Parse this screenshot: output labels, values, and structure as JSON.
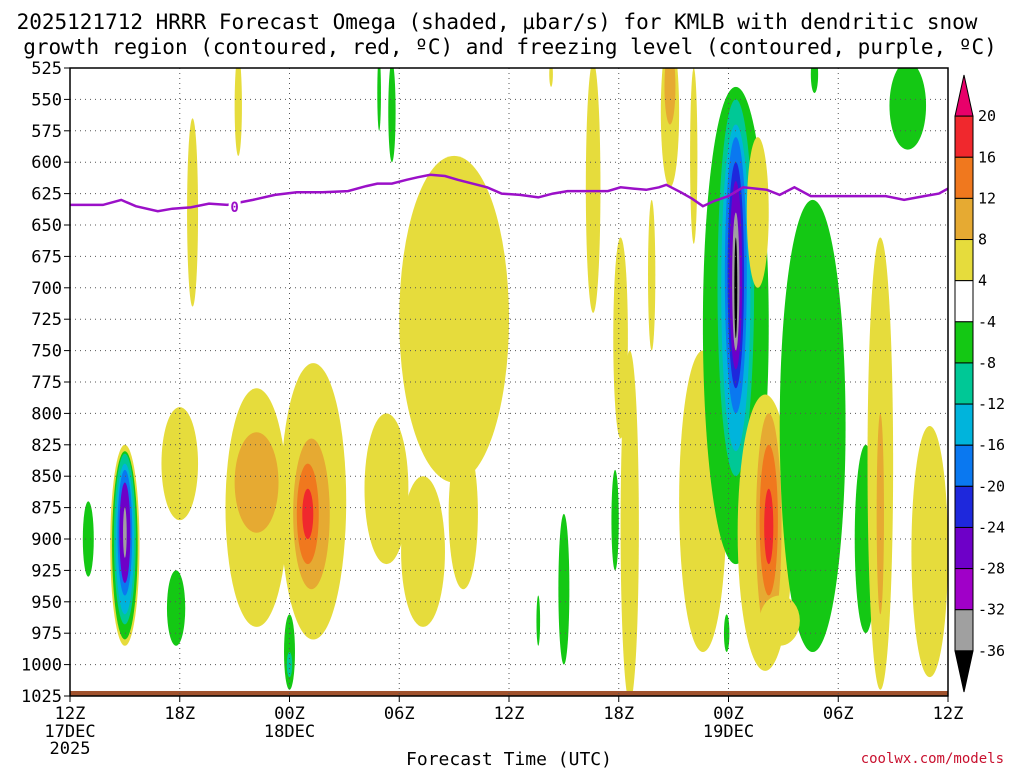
{
  "chart_data": {
    "type": "time-height contour",
    "title_line1": "2025121712 HRRR Forecast Omega (shaded, µbar/s) for KMLB with dendritic snow",
    "title_line2": "growth region (contoured, red, ºC) and freezing level (contoured, purple, ºC)",
    "xlabel": "Forecast Time (UTC)",
    "credit": "coolwx.com/models",
    "y_axis": {
      "unit": "hPa",
      "range": [
        1025,
        525
      ],
      "ticks": [
        "525",
        "550",
        "575",
        "600",
        "625",
        "650",
        "675",
        "700",
        "725",
        "750",
        "775",
        "800",
        "825",
        "850",
        "875",
        "900",
        "925",
        "950",
        "975",
        "1000",
        "1025"
      ]
    },
    "x_axis": {
      "range_hours": [
        0,
        48
      ],
      "ticks": [
        {
          "h": 0,
          "label": "12Z",
          "sub1": "17DEC",
          "sub2": "2025"
        },
        {
          "h": 6,
          "label": "18Z",
          "sub1": "",
          "sub2": ""
        },
        {
          "h": 12,
          "label": "00Z",
          "sub1": "18DEC",
          "sub2": ""
        },
        {
          "h": 18,
          "label": "06Z",
          "sub1": "",
          "sub2": ""
        },
        {
          "h": 24,
          "label": "12Z",
          "sub1": "",
          "sub2": ""
        },
        {
          "h": 30,
          "label": "18Z",
          "sub1": "",
          "sub2": ""
        },
        {
          "h": 36,
          "label": "00Z",
          "sub1": "19DEC",
          "sub2": ""
        },
        {
          "h": 42,
          "label": "06Z",
          "sub1": "",
          "sub2": ""
        },
        {
          "h": 48,
          "label": "12Z",
          "sub1": "",
          "sub2": ""
        }
      ]
    },
    "colorbar": {
      "labels": [
        "20",
        "16",
        "12",
        "8",
        "4",
        "-4",
        "-8",
        "-12",
        "-16",
        "-20",
        "-24",
        "-28",
        "-32",
        "-36"
      ],
      "colors": [
        "#e8006a",
        "#f0282d",
        "#f0781e",
        "#e6aa32",
        "#e6dc3c",
        "#ffffff",
        "#14c814",
        "#00c896",
        "#00b4dc",
        "#0a78f0",
        "#1e28dc",
        "#6e00c8",
        "#a000c8",
        "#a0a0a0",
        "#000000"
      ]
    },
    "freezing_level": {
      "label": "0",
      "color": "#9b10c8",
      "points": [
        [
          0,
          634
        ],
        [
          1.8,
          634
        ],
        [
          2.8,
          630
        ],
        [
          3.6,
          635
        ],
        [
          4.8,
          639
        ],
        [
          5.6,
          637
        ],
        [
          6.6,
          636
        ],
        [
          7.6,
          633
        ],
        [
          8.6,
          634
        ],
        [
          10,
          630
        ],
        [
          11.2,
          626
        ],
        [
          12.4,
          624
        ],
        [
          13.8,
          624
        ],
        [
          15.2,
          623
        ],
        [
          16.2,
          619
        ],
        [
          16.8,
          617
        ],
        [
          17.6,
          617
        ],
        [
          18.4,
          614
        ],
        [
          19,
          612
        ],
        [
          19.7,
          610
        ],
        [
          20.5,
          611
        ],
        [
          21.2,
          614
        ],
        [
          22,
          617
        ],
        [
          22.8,
          620
        ],
        [
          23.6,
          625
        ],
        [
          24.6,
          626
        ],
        [
          25.6,
          628
        ],
        [
          26.4,
          625
        ],
        [
          27.2,
          623
        ],
        [
          28.5,
          623
        ],
        [
          29.4,
          623
        ],
        [
          30.1,
          620
        ],
        [
          30.8,
          621
        ],
        [
          31.5,
          622
        ],
        [
          32.2,
          620
        ],
        [
          32.6,
          618
        ],
        [
          33.4,
          624
        ],
        [
          34,
          629
        ],
        [
          34.6,
          635
        ],
        [
          35.2,
          631
        ],
        [
          36,
          627
        ],
        [
          36.8,
          620
        ],
        [
          38.1,
          622
        ],
        [
          38.8,
          626
        ],
        [
          39.6,
          620
        ],
        [
          40.5,
          627
        ],
        [
          41.4,
          627
        ],
        [
          42.5,
          627
        ],
        [
          43.5,
          627
        ],
        [
          44.6,
          627
        ],
        [
          45.6,
          630
        ],
        [
          46.7,
          627
        ],
        [
          47.5,
          625
        ],
        [
          48,
          621
        ]
      ]
    },
    "omega_shaded": [
      {
        "value": 4,
        "color": "#e6dc3c",
        "cx": 3.0,
        "cp": 905,
        "rx": 0.8,
        "rp": 80
      },
      {
        "value": -8,
        "color": "#14c814",
        "cx": 3.0,
        "cp": 905,
        "rx": 0.7,
        "rp": 75
      },
      {
        "value": -12,
        "color": "#00c896",
        "cx": 3.0,
        "cp": 900,
        "rx": 0.6,
        "rp": 68
      },
      {
        "value": -16,
        "color": "#00b4dc",
        "cx": 3.0,
        "cp": 900,
        "rx": 0.5,
        "rp": 60
      },
      {
        "value": -20,
        "color": "#0a78f0",
        "cx": 3.0,
        "cp": 895,
        "rx": 0.4,
        "rp": 50
      },
      {
        "value": -28,
        "color": "#6e00c8",
        "cx": 3.0,
        "cp": 895,
        "rx": 0.3,
        "rp": 40
      },
      {
        "value": -32,
        "color": "#a0a0a0",
        "cx": 3.0,
        "cp": 895,
        "rx": 0.1,
        "rp": 20
      },
      {
        "value": -8,
        "color": "#14c814",
        "cx": 1.0,
        "cp": 900,
        "rx": 0.3,
        "rp": 30
      },
      {
        "value": -8,
        "color": "#14c814",
        "cx": 5.8,
        "cp": 955,
        "rx": 0.5,
        "rp": 30
      },
      {
        "value": 4,
        "color": "#e6dc3c",
        "cx": 6.7,
        "cp": 640,
        "rx": 0.3,
        "rp": 75
      },
      {
        "value": 4,
        "color": "#e6dc3c",
        "cx": 9.2,
        "cp": 555,
        "rx": 0.2,
        "rp": 40
      },
      {
        "value": 4,
        "color": "#e6dc3c",
        "cx": 6.0,
        "cp": 840,
        "rx": 1.0,
        "rp": 45
      },
      {
        "value": 4,
        "color": "#e6dc3c",
        "cx": 10.2,
        "cp": 875,
        "rx": 1.7,
        "rp": 95
      },
      {
        "value": 8,
        "color": "#e6aa32",
        "cx": 10.2,
        "cp": 855,
        "rx": 1.2,
        "rp": 40
      },
      {
        "value": 4,
        "color": "#e6dc3c",
        "cx": 13.3,
        "cp": 870,
        "rx": 1.8,
        "rp": 110
      },
      {
        "value": 8,
        "color": "#e6aa32",
        "cx": 13.2,
        "cp": 880,
        "rx": 1.0,
        "rp": 60
      },
      {
        "value": 12,
        "color": "#f0781e",
        "cx": 13.0,
        "cp": 880,
        "rx": 0.6,
        "rp": 40
      },
      {
        "value": 16,
        "color": "#f0282d",
        "cx": 13.0,
        "cp": 880,
        "rx": 0.3,
        "rp": 20
      },
      {
        "value": -8,
        "color": "#14c814",
        "cx": 12.0,
        "cp": 990,
        "rx": 0.3,
        "rp": 30
      },
      {
        "value": -12,
        "color": "#00c896",
        "cx": 12.0,
        "cp": 1000,
        "rx": 0.15,
        "rp": 10
      },
      {
        "value": 4,
        "color": "#e6dc3c",
        "cx": 17.3,
        "cp": 860,
        "rx": 1.2,
        "rp": 60
      },
      {
        "value": 4,
        "color": "#e6dc3c",
        "cx": 19.3,
        "cp": 910,
        "rx": 1.2,
        "rp": 60
      },
      {
        "value": 4,
        "color": "#e6dc3c",
        "cx": 21.2,
        "cp": 760,
        "rx": 0.3,
        "rp": 40
      },
      {
        "value": 4,
        "color": "#e6dc3c",
        "cx": 21.5,
        "cp": 880,
        "rx": 0.8,
        "rp": 60
      },
      {
        "value": 4,
        "color": "#e6dc3c",
        "cx": 21.0,
        "cp": 725,
        "rx": 3.0,
        "rp": 130
      },
      {
        "value": -8,
        "color": "#14c814",
        "cx": 17.6,
        "cp": 560,
        "rx": 0.2,
        "rp": 40
      },
      {
        "value": -8,
        "color": "#14c814",
        "cx": 25.6,
        "cp": 965,
        "rx": 0.1,
        "rp": 20
      },
      {
        "value": -8,
        "color": "#14c814",
        "cx": 27.0,
        "cp": 940,
        "rx": 0.3,
        "rp": 60
      },
      {
        "value": -8,
        "color": "#14c814",
        "cx": 29.8,
        "cp": 885,
        "rx": 0.2,
        "rp": 40
      },
      {
        "value": 4,
        "color": "#e6dc3c",
        "cx": 30.1,
        "cp": 740,
        "rx": 0.4,
        "rp": 80
      },
      {
        "value": 4,
        "color": "#e6dc3c",
        "cx": 28.6,
        "cp": 620,
        "rx": 0.4,
        "rp": 100
      },
      {
        "value": 4,
        "color": "#e6dc3c",
        "cx": 30.6,
        "cp": 890,
        "rx": 0.5,
        "rp": 140
      },
      {
        "value": 4,
        "color": "#e6dc3c",
        "cx": 31.8,
        "cp": 690,
        "rx": 0.2,
        "rp": 60
      },
      {
        "value": 4,
        "color": "#e6dc3c",
        "cx": 32.8,
        "cp": 560,
        "rx": 0.5,
        "rp": 60
      },
      {
        "value": 8,
        "color": "#e6aa32",
        "cx": 32.8,
        "cp": 540,
        "rx": 0.3,
        "rp": 30
      },
      {
        "value": 4,
        "color": "#e6dc3c",
        "cx": 34.6,
        "cp": 870,
        "rx": 1.3,
        "rp": 120
      },
      {
        "value": -8,
        "color": "#14c814",
        "cx": 36.4,
        "cp": 730,
        "rx": 1.8,
        "rp": 190
      },
      {
        "value": -12,
        "color": "#00c896",
        "cx": 36.4,
        "cp": 700,
        "rx": 1.0,
        "rp": 150
      },
      {
        "value": -16,
        "color": "#00b4dc",
        "cx": 36.4,
        "cp": 700,
        "rx": 0.8,
        "rp": 130
      },
      {
        "value": -20,
        "color": "#0a78f0",
        "cx": 36.4,
        "cp": 690,
        "rx": 0.6,
        "rp": 110
      },
      {
        "value": -24,
        "color": "#1e28dc",
        "cx": 36.4,
        "cp": 690,
        "rx": 0.45,
        "rp": 90
      },
      {
        "value": -28,
        "color": "#6e00c8",
        "cx": 36.4,
        "cp": 690,
        "rx": 0.35,
        "rp": 75
      },
      {
        "value": -32,
        "color": "#a0a0a0",
        "cx": 36.4,
        "cp": 695,
        "rx": 0.2,
        "rp": 55
      },
      {
        "value": -36,
        "color": "#000000",
        "cx": 36.4,
        "cp": 700,
        "rx": 0.08,
        "rp": 40
      },
      {
        "value": 4,
        "color": "#e6dc3c",
        "cx": 37.6,
        "cp": 640,
        "rx": 0.6,
        "rp": 60
      },
      {
        "value": 4,
        "color": "#e6dc3c",
        "cx": 38.0,
        "cp": 895,
        "rx": 1.5,
        "rp": 110
      },
      {
        "value": 8,
        "color": "#e6aa32",
        "cx": 38.2,
        "cp": 890,
        "rx": 0.7,
        "rp": 90
      },
      {
        "value": 12,
        "color": "#f0781e",
        "cx": 38.2,
        "cp": 885,
        "rx": 0.5,
        "rp": 60
      },
      {
        "value": 16,
        "color": "#f0282d",
        "cx": 38.2,
        "cp": 890,
        "rx": 0.25,
        "rp": 30
      },
      {
        "value": -8,
        "color": "#14c814",
        "cx": 40.6,
        "cp": 810,
        "rx": 1.8,
        "rp": 180
      },
      {
        "value": -8,
        "color": "#14c814",
        "cx": 43.5,
        "cp": 900,
        "rx": 0.6,
        "rp": 75
      },
      {
        "value": 4,
        "color": "#e6dc3c",
        "cx": 44.3,
        "cp": 840,
        "rx": 0.7,
        "rp": 180
      },
      {
        "value": 8,
        "color": "#e6aa32",
        "cx": 44.3,
        "cp": 880,
        "rx": 0.2,
        "rp": 80
      },
      {
        "value": 4,
        "color": "#e6dc3c",
        "cx": 47.0,
        "cp": 910,
        "rx": 1.0,
        "rp": 100
      },
      {
        "value": -8,
        "color": "#14c814",
        "cx": 45.8,
        "cp": 555,
        "rx": 1.0,
        "rp": 35
      },
      {
        "value": -8,
        "color": "#14c814",
        "cx": 40.7,
        "cp": 530,
        "rx": 0.2,
        "rp": 15
      },
      {
        "value": -8,
        "color": "#14c814",
        "cx": 16.9,
        "cp": 545,
        "rx": 0.1,
        "rp": 30
      },
      {
        "value": 4,
        "color": "#e6dc3c",
        "cx": 34.1,
        "cp": 595,
        "rx": 0.2,
        "rp": 70
      },
      {
        "value": -8,
        "color": "#14c814",
        "cx": 35.9,
        "cp": 975,
        "rx": 0.15,
        "rp": 15
      },
      {
        "value": 4,
        "color": "#e6dc3c",
        "cx": 38.8,
        "cp": 965,
        "rx": 1.1,
        "rp": 20
      },
      {
        "value": 4,
        "color": "#e6dc3c",
        "cx": 26.3,
        "cp": 530,
        "rx": 0.1,
        "rp": 10
      }
    ],
    "surface_band": {
      "color": "#a0522d",
      "top_hpa": 1021
    }
  }
}
